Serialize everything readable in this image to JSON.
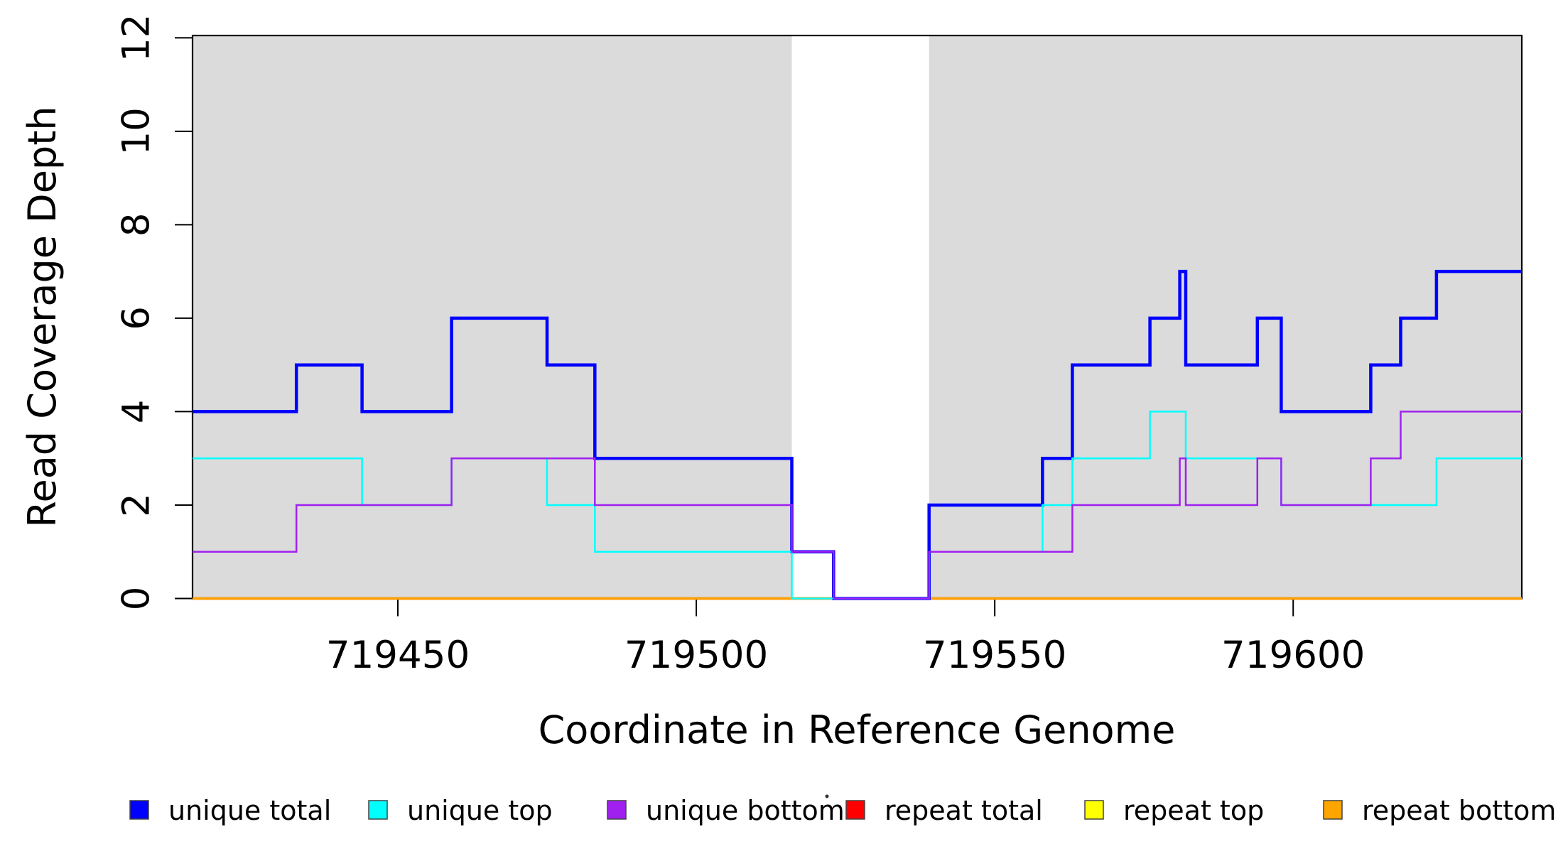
{
  "chart_data": {
    "type": "line",
    "subtype": "step-coverage-plot",
    "title": "",
    "xlabel": "Coordinate in Reference Genome",
    "ylabel": "Read Coverage Depth",
    "xlim": [
      719415.6,
      719638.3
    ],
    "ylim": [
      0,
      12.05
    ],
    "x_ticks": [
      719450,
      719500,
      719550,
      719600
    ],
    "x_tick_labels": [
      "719450",
      "719500",
      "719550",
      "719600"
    ],
    "y_ticks": [
      0,
      2,
      4,
      6,
      8,
      10,
      12
    ],
    "y_tick_labels": [
      "0",
      "2",
      "4",
      "6",
      "8",
      "10",
      "12"
    ],
    "grid": false,
    "legend_position": "bottom",
    "background_color": "#ffffff",
    "shade_color": "#DBDBDB",
    "axis_color": "#000000",
    "legend_box_border": "#444444",
    "shaded_regions": [
      {
        "name": "covered-region-1",
        "start": 719415.6,
        "end": 719516
      },
      {
        "name": "covered-region-2",
        "start": 719539,
        "end": 719638.3
      }
    ],
    "series": [
      {
        "name": "repeat total",
        "color": "#FF0000",
        "width": 3.5,
        "start_value": 0,
        "steps": []
      },
      {
        "name": "repeat top",
        "color": "#FFFF00",
        "width": 3.0,
        "start_value": 0,
        "steps": []
      },
      {
        "name": "repeat bottom",
        "color": "#FFA500",
        "width": 3.5,
        "start_value": 0,
        "steps": []
      },
      {
        "name": "unique total",
        "color": "#0000FF",
        "width": 4.5,
        "start_value": 4,
        "steps": [
          [
            719433,
            5
          ],
          [
            719444,
            4
          ],
          [
            719459,
            6
          ],
          [
            719475,
            5
          ],
          [
            719483,
            3
          ],
          [
            719516,
            1
          ],
          [
            719523,
            0
          ],
          [
            719539,
            2
          ],
          [
            719558,
            3
          ],
          [
            719563,
            5
          ],
          [
            719576,
            6
          ],
          [
            719581,
            7
          ],
          [
            719582,
            5
          ],
          [
            719594,
            6
          ],
          [
            719598,
            4
          ],
          [
            719613,
            5
          ],
          [
            719618,
            6
          ],
          [
            719624,
            7
          ]
        ]
      },
      {
        "name": "unique top",
        "color": "#00FFFF",
        "width": 2.5,
        "start_value": 3,
        "steps": [
          [
            719444,
            2
          ],
          [
            719459,
            3
          ],
          [
            719475,
            2
          ],
          [
            719483,
            1
          ],
          [
            719516,
            0
          ],
          [
            719539,
            1
          ],
          [
            719558,
            2
          ],
          [
            719563,
            3
          ],
          [
            719576,
            4
          ],
          [
            719582,
            3
          ],
          [
            719598,
            2
          ],
          [
            719624,
            3
          ]
        ]
      },
      {
        "name": "unique bottom",
        "color": "#A020F0",
        "width": 2.5,
        "start_value": 1,
        "steps": [
          [
            719433,
            2
          ],
          [
            719459,
            3
          ],
          [
            719483,
            2
          ],
          [
            719516,
            1
          ],
          [
            719523,
            0
          ],
          [
            719539,
            1
          ],
          [
            719563,
            2
          ],
          [
            719581,
            3
          ],
          [
            719582,
            2
          ],
          [
            719594,
            3
          ],
          [
            719598,
            2
          ],
          [
            719613,
            3
          ],
          [
            719618,
            4
          ]
        ]
      }
    ],
    "legend": [
      {
        "label": "unique total",
        "color": "#0000FF"
      },
      {
        "label": "unique top",
        "color": "#00FFFF"
      },
      {
        "label": "unique bottom",
        "color": "#A020F0"
      },
      {
        "label": "repeat total",
        "color": "#FF0000"
      },
      {
        "label": "repeat top",
        "color": "#FFFF00"
      },
      {
        "label": "repeat bottom",
        "color": "#FFA500"
      }
    ]
  }
}
